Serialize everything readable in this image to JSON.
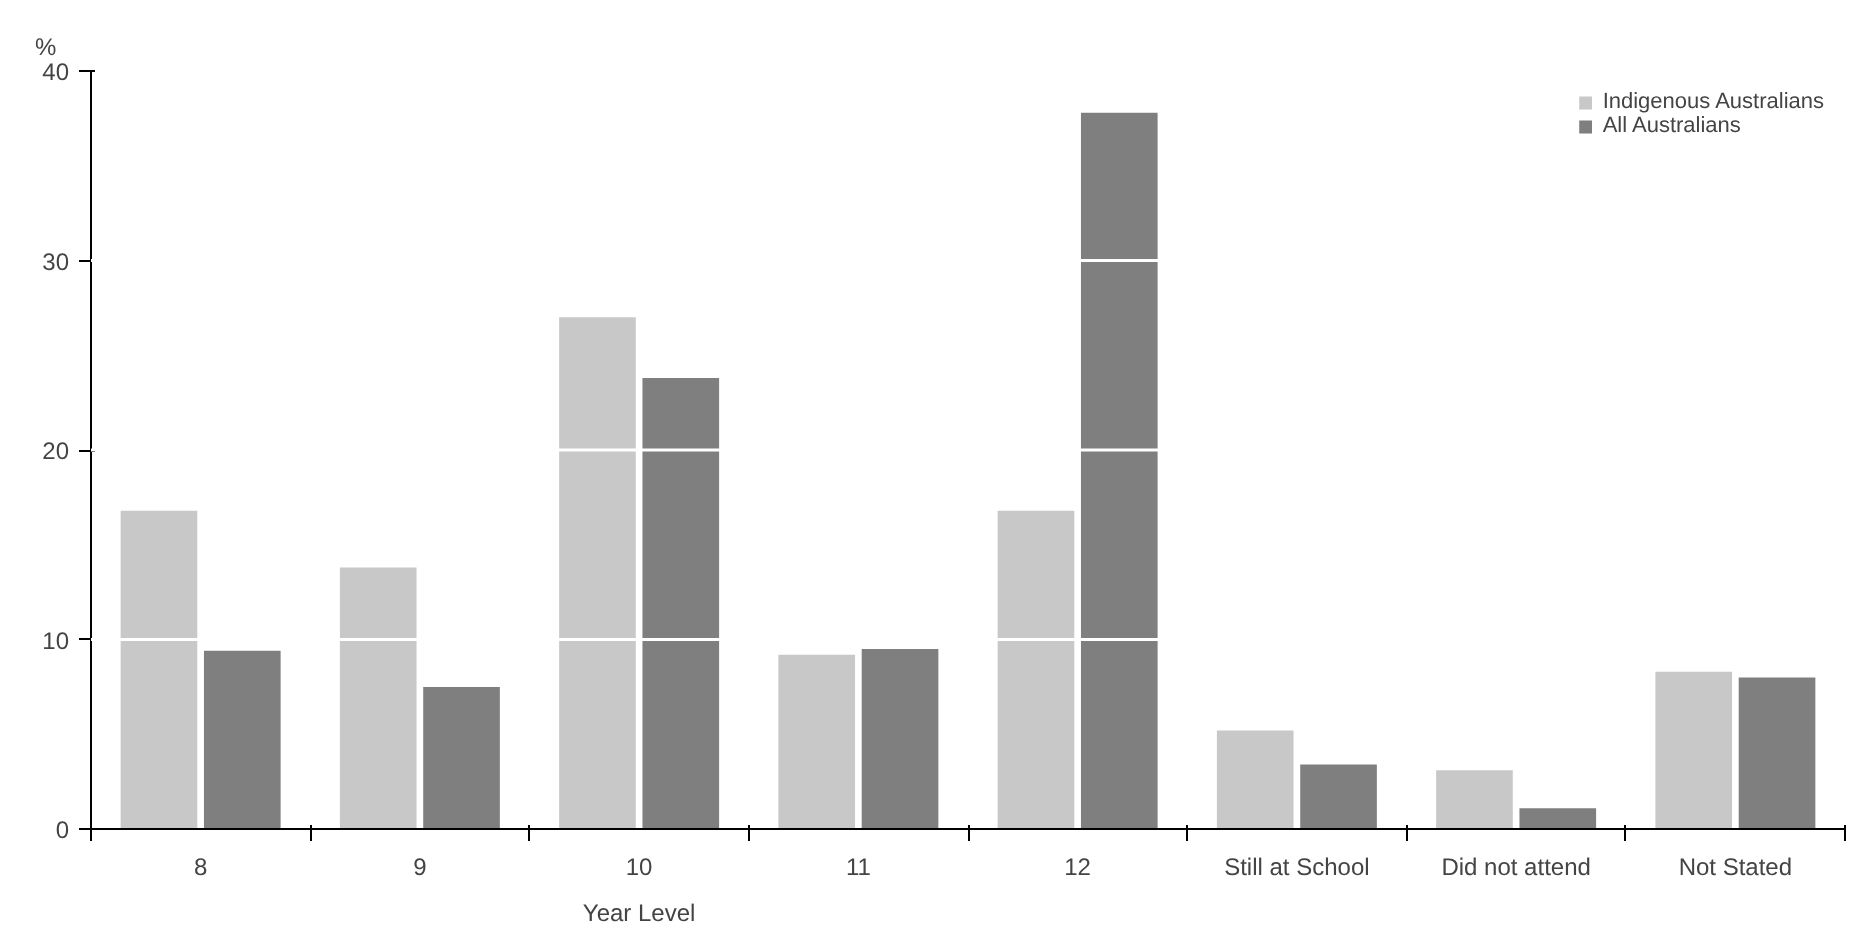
{
  "chart_data": {
    "type": "bar",
    "ylabel": "%",
    "categories": [
      "8",
      "9",
      "10",
      "11",
      "12",
      "Still at School",
      "Did not attend",
      "Not Stated"
    ],
    "series": [
      {
        "name": "Indigenous Australians",
        "color": "#c8c8c8",
        "values": [
          16.8,
          13.8,
          27.0,
          9.2,
          16.8,
          5.2,
          3.1,
          8.3
        ]
      },
      {
        "name": "All Australians",
        "color": "#7f7f7f",
        "values": [
          9.4,
          7.5,
          23.8,
          9.5,
          37.8,
          3.4,
          1.1,
          8.0
        ]
      }
    ],
    "annotations": [
      "Year Level"
    ],
    "ylim": [
      0,
      40
    ],
    "yticks": [
      0,
      10,
      20,
      30,
      40
    ],
    "grid": "y",
    "legend": "top right"
  }
}
